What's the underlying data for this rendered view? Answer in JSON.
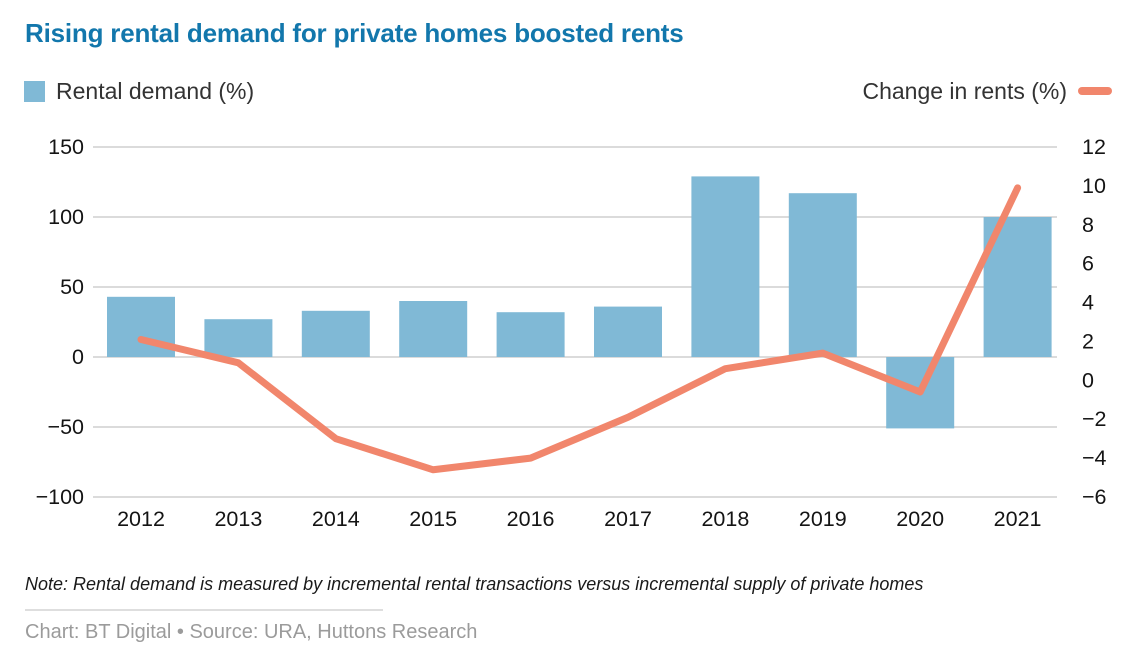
{
  "title": "Rising rental demand for private homes boosted rents",
  "legend": {
    "bars_label": "Rental demand (%)",
    "line_label": "Change in rents (%)"
  },
  "note": "Note: Rental demand is measured by incremental rental transactions versus incremental supply of private homes",
  "credit": "Chart: BT Digital • Source: URA, Huttons Research",
  "colors": {
    "title": "#1277ac",
    "bar": "#80b9d6",
    "line": "#f1866c",
    "grid": "#cfcfcf",
    "axis_text": "#141414",
    "legend_text": "#333333",
    "credit_text": "#9b9b9b"
  },
  "chart_data": {
    "type": "combo",
    "categories": [
      "2012",
      "2013",
      "2014",
      "2015",
      "2016",
      "2017",
      "2018",
      "2019",
      "2020",
      "2021"
    ],
    "series": [
      {
        "name": "Rental demand (%)",
        "type": "bar",
        "axis": "left",
        "values": [
          43,
          27,
          33,
          40,
          32,
          36,
          129,
          117,
          -51,
          100
        ]
      },
      {
        "name": "Change in rents (%)",
        "type": "line",
        "axis": "right",
        "values": [
          2.1,
          0.9,
          -3.0,
          -4.6,
          -4.0,
          -1.9,
          0.6,
          1.4,
          -0.6,
          9.9
        ]
      }
    ],
    "left_axis": {
      "min": -100,
      "max": 150,
      "tick_step": 50,
      "ticks": [
        150,
        100,
        50,
        0,
        -50,
        -100
      ]
    },
    "right_axis": {
      "min": -6,
      "max": 12,
      "tick_step": 2,
      "ticks": [
        12,
        10,
        8,
        6,
        4,
        2,
        0,
        -2,
        -4,
        -6
      ]
    },
    "grid": "horizontal",
    "legend_position": "top",
    "title": "Rising rental demand for private homes boosted rents"
  }
}
